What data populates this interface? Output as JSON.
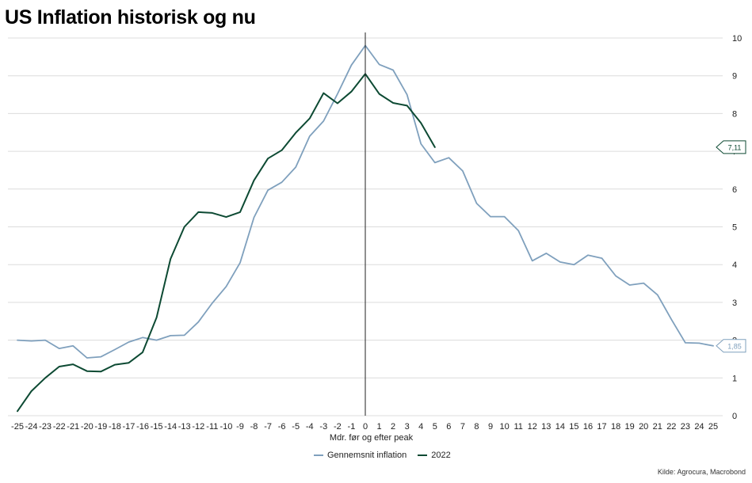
{
  "title": "US Inflation historisk og nu",
  "source": "Kilde: Agrocura, Macrobond",
  "colors": {
    "avg": "#7fa0bd",
    "y2022": "#0d4a33",
    "grid": "#dcdcdc",
    "peak_line": "#222222"
  },
  "chart_data": {
    "type": "line",
    "title": "US Inflation historisk og nu",
    "xlabel": "Mdr. før og efter peak",
    "ylabel": "",
    "xlim": [
      -25,
      25
    ],
    "ylim": [
      0,
      10
    ],
    "x_ticks": [
      -25,
      -24,
      -23,
      -22,
      -21,
      -20,
      -19,
      -18,
      -17,
      -16,
      -15,
      -14,
      -13,
      -12,
      -11,
      -10,
      -9,
      -8,
      -7,
      -6,
      -5,
      -4,
      -3,
      -2,
      -1,
      0,
      1,
      2,
      3,
      4,
      5,
      6,
      7,
      8,
      9,
      10,
      11,
      12,
      13,
      14,
      15,
      16,
      17,
      18,
      19,
      20,
      21,
      22,
      23,
      24,
      25
    ],
    "y_ticks": [
      0,
      1,
      2,
      3,
      4,
      5,
      6,
      7,
      8,
      9,
      10
    ],
    "grid": "horizontal",
    "legend_position": "bottom",
    "vertical_marker_x": 0,
    "series": [
      {
        "name": "Gennemsnit inflation",
        "color_key": "avg",
        "x": [
          -25,
          -24,
          -23,
          -22,
          -21,
          -20,
          -19,
          -18,
          -17,
          -16,
          -15,
          -14,
          -13,
          -12,
          -11,
          -10,
          -9,
          -8,
          -7,
          -6,
          -5,
          -4,
          -3,
          -2,
          -1,
          0,
          1,
          2,
          3,
          4,
          5,
          6,
          7,
          8,
          9,
          10,
          11,
          12,
          13,
          14,
          15,
          16,
          17,
          18,
          19,
          20,
          21,
          22,
          23,
          24,
          25
        ],
        "values": [
          2.0,
          1.98,
          2.0,
          1.78,
          1.85,
          1.53,
          1.56,
          1.75,
          1.95,
          2.07,
          2.0,
          2.12,
          2.13,
          2.48,
          2.98,
          3.42,
          4.05,
          5.25,
          5.97,
          6.18,
          6.58,
          7.4,
          7.8,
          8.52,
          9.28,
          9.8,
          9.3,
          9.15,
          8.5,
          7.2,
          6.7,
          6.83,
          6.48,
          5.62,
          5.27,
          5.27,
          4.9,
          4.1,
          4.3,
          4.07,
          4.0,
          4.25,
          4.17,
          3.7,
          3.46,
          3.51,
          3.2,
          2.55,
          1.93,
          1.92,
          1.85
        ],
        "end_label": "1,85"
      },
      {
        "name": "2022",
        "color_key": "y2022",
        "x": [
          -25,
          -24,
          -23,
          -22,
          -21,
          -20,
          -19,
          -18,
          -17,
          -16,
          -15,
          -14,
          -13,
          -12,
          -11,
          -10,
          -9,
          -8,
          -7,
          -6,
          -5,
          -4,
          -3,
          -2,
          -1,
          0,
          1,
          2,
          3,
          4,
          5
        ],
        "values": [
          0.12,
          0.65,
          1.0,
          1.3,
          1.36,
          1.18,
          1.17,
          1.35,
          1.4,
          1.68,
          2.6,
          4.15,
          5.0,
          5.39,
          5.37,
          5.26,
          5.39,
          6.23,
          6.81,
          7.03,
          7.49,
          7.87,
          8.54,
          8.27,
          8.58,
          9.05,
          8.52,
          8.28,
          8.21,
          7.75,
          7.11
        ],
        "end_label": "7,11"
      }
    ]
  }
}
